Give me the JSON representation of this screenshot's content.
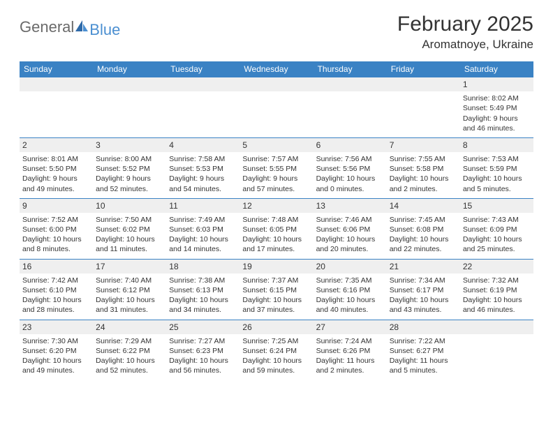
{
  "brand": {
    "word1": "General",
    "word2": "Blue",
    "color1": "#6a6a6a",
    "color2": "#4b8fd1"
  },
  "title": {
    "month": "February 2025",
    "location": "Aromatnoye, Ukraine"
  },
  "colors": {
    "header_bg": "#3a82c4",
    "header_fg": "#ffffff",
    "daynum_bg": "#efefef",
    "row_border": "#3a82c4",
    "text": "#333333"
  },
  "table": {
    "columns": [
      "Sunday",
      "Monday",
      "Tuesday",
      "Wednesday",
      "Thursday",
      "Friday",
      "Saturday"
    ],
    "weeks": [
      [
        null,
        null,
        null,
        null,
        null,
        null,
        {
          "n": "1",
          "sr": "Sunrise: 8:02 AM",
          "ss": "Sunset: 5:49 PM",
          "d1": "Daylight: 9 hours",
          "d2": "and 46 minutes."
        }
      ],
      [
        {
          "n": "2",
          "sr": "Sunrise: 8:01 AM",
          "ss": "Sunset: 5:50 PM",
          "d1": "Daylight: 9 hours",
          "d2": "and 49 minutes."
        },
        {
          "n": "3",
          "sr": "Sunrise: 8:00 AM",
          "ss": "Sunset: 5:52 PM",
          "d1": "Daylight: 9 hours",
          "d2": "and 52 minutes."
        },
        {
          "n": "4",
          "sr": "Sunrise: 7:58 AM",
          "ss": "Sunset: 5:53 PM",
          "d1": "Daylight: 9 hours",
          "d2": "and 54 minutes."
        },
        {
          "n": "5",
          "sr": "Sunrise: 7:57 AM",
          "ss": "Sunset: 5:55 PM",
          "d1": "Daylight: 9 hours",
          "d2": "and 57 minutes."
        },
        {
          "n": "6",
          "sr": "Sunrise: 7:56 AM",
          "ss": "Sunset: 5:56 PM",
          "d1": "Daylight: 10 hours",
          "d2": "and 0 minutes."
        },
        {
          "n": "7",
          "sr": "Sunrise: 7:55 AM",
          "ss": "Sunset: 5:58 PM",
          "d1": "Daylight: 10 hours",
          "d2": "and 2 minutes."
        },
        {
          "n": "8",
          "sr": "Sunrise: 7:53 AM",
          "ss": "Sunset: 5:59 PM",
          "d1": "Daylight: 10 hours",
          "d2": "and 5 minutes."
        }
      ],
      [
        {
          "n": "9",
          "sr": "Sunrise: 7:52 AM",
          "ss": "Sunset: 6:00 PM",
          "d1": "Daylight: 10 hours",
          "d2": "and 8 minutes."
        },
        {
          "n": "10",
          "sr": "Sunrise: 7:50 AM",
          "ss": "Sunset: 6:02 PM",
          "d1": "Daylight: 10 hours",
          "d2": "and 11 minutes."
        },
        {
          "n": "11",
          "sr": "Sunrise: 7:49 AM",
          "ss": "Sunset: 6:03 PM",
          "d1": "Daylight: 10 hours",
          "d2": "and 14 minutes."
        },
        {
          "n": "12",
          "sr": "Sunrise: 7:48 AM",
          "ss": "Sunset: 6:05 PM",
          "d1": "Daylight: 10 hours",
          "d2": "and 17 minutes."
        },
        {
          "n": "13",
          "sr": "Sunrise: 7:46 AM",
          "ss": "Sunset: 6:06 PM",
          "d1": "Daylight: 10 hours",
          "d2": "and 20 minutes."
        },
        {
          "n": "14",
          "sr": "Sunrise: 7:45 AM",
          "ss": "Sunset: 6:08 PM",
          "d1": "Daylight: 10 hours",
          "d2": "and 22 minutes."
        },
        {
          "n": "15",
          "sr": "Sunrise: 7:43 AM",
          "ss": "Sunset: 6:09 PM",
          "d1": "Daylight: 10 hours",
          "d2": "and 25 minutes."
        }
      ],
      [
        {
          "n": "16",
          "sr": "Sunrise: 7:42 AM",
          "ss": "Sunset: 6:10 PM",
          "d1": "Daylight: 10 hours",
          "d2": "and 28 minutes."
        },
        {
          "n": "17",
          "sr": "Sunrise: 7:40 AM",
          "ss": "Sunset: 6:12 PM",
          "d1": "Daylight: 10 hours",
          "d2": "and 31 minutes."
        },
        {
          "n": "18",
          "sr": "Sunrise: 7:38 AM",
          "ss": "Sunset: 6:13 PM",
          "d1": "Daylight: 10 hours",
          "d2": "and 34 minutes."
        },
        {
          "n": "19",
          "sr": "Sunrise: 7:37 AM",
          "ss": "Sunset: 6:15 PM",
          "d1": "Daylight: 10 hours",
          "d2": "and 37 minutes."
        },
        {
          "n": "20",
          "sr": "Sunrise: 7:35 AM",
          "ss": "Sunset: 6:16 PM",
          "d1": "Daylight: 10 hours",
          "d2": "and 40 minutes."
        },
        {
          "n": "21",
          "sr": "Sunrise: 7:34 AM",
          "ss": "Sunset: 6:17 PM",
          "d1": "Daylight: 10 hours",
          "d2": "and 43 minutes."
        },
        {
          "n": "22",
          "sr": "Sunrise: 7:32 AM",
          "ss": "Sunset: 6:19 PM",
          "d1": "Daylight: 10 hours",
          "d2": "and 46 minutes."
        }
      ],
      [
        {
          "n": "23",
          "sr": "Sunrise: 7:30 AM",
          "ss": "Sunset: 6:20 PM",
          "d1": "Daylight: 10 hours",
          "d2": "and 49 minutes."
        },
        {
          "n": "24",
          "sr": "Sunrise: 7:29 AM",
          "ss": "Sunset: 6:22 PM",
          "d1": "Daylight: 10 hours",
          "d2": "and 52 minutes."
        },
        {
          "n": "25",
          "sr": "Sunrise: 7:27 AM",
          "ss": "Sunset: 6:23 PM",
          "d1": "Daylight: 10 hours",
          "d2": "and 56 minutes."
        },
        {
          "n": "26",
          "sr": "Sunrise: 7:25 AM",
          "ss": "Sunset: 6:24 PM",
          "d1": "Daylight: 10 hours",
          "d2": "and 59 minutes."
        },
        {
          "n": "27",
          "sr": "Sunrise: 7:24 AM",
          "ss": "Sunset: 6:26 PM",
          "d1": "Daylight: 11 hours",
          "d2": "and 2 minutes."
        },
        {
          "n": "28",
          "sr": "Sunrise: 7:22 AM",
          "ss": "Sunset: 6:27 PM",
          "d1": "Daylight: 11 hours",
          "d2": "and 5 minutes."
        },
        null
      ]
    ]
  }
}
